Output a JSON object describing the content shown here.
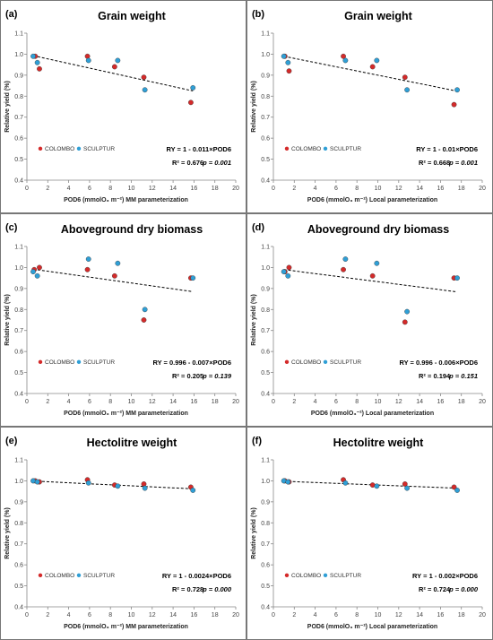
{
  "styles": {
    "colombo_color": "#d42a2a",
    "sculptur_color": "#2f9fd6",
    "trend_color": "#000000",
    "border_color": "#777777"
  },
  "chart_data": [
    {
      "panel": "(a)",
      "type": "scatter",
      "title": "Grain weight",
      "xlabel": "POD6 (mmolO₃ m⁻²) MM parameterization",
      "ylabel": "Relative yield (%)",
      "xlim": [
        0,
        20
      ],
      "ylim": [
        0.4,
        1.1
      ],
      "xticks": [
        "0",
        "2",
        "4",
        "6",
        "8",
        "10",
        "12",
        "14",
        "16",
        "18",
        "20"
      ],
      "yticks": [
        "0.4",
        "0.5",
        "0.6",
        "0.7",
        "0.8",
        "0.9",
        "1.0",
        "1.1"
      ],
      "legend": [
        "COLOMBO",
        "SCULPTUR"
      ],
      "series": [
        {
          "name": "COLOMBO",
          "x": [
            0.8,
            1.2,
            5.8,
            8.4,
            11.2,
            15.7
          ],
          "y": [
            0.99,
            0.93,
            0.99,
            0.94,
            0.89,
            0.77
          ]
        },
        {
          "name": "SCULPTUR",
          "x": [
            0.6,
            1.0,
            5.9,
            8.7,
            11.3,
            15.9
          ],
          "y": [
            0.99,
            0.96,
            0.97,
            0.97,
            0.83,
            0.84
          ]
        }
      ],
      "trend": {
        "x": [
          0.6,
          15.9
        ],
        "y": [
          0.993,
          0.825
        ]
      },
      "equation": "RY = 1 - 0.011×POD6",
      "r2": "R² = 0.676",
      "p": "p = 0.001"
    },
    {
      "panel": "(b)",
      "type": "scatter",
      "title": "Grain weight",
      "xlabel": "POD6 (mmolO₃ m⁻²) Local parameterization",
      "ylabel": "Relative yield (%)",
      "xlim": [
        0,
        20
      ],
      "ylim": [
        0.4,
        1.1
      ],
      "xticks": [
        "0",
        "2",
        "4",
        "6",
        "8",
        "10",
        "12",
        "14",
        "16",
        "18",
        "20"
      ],
      "yticks": [
        "0.4",
        "0.5",
        "0.6",
        "0.7",
        "0.8",
        "0.9",
        "1.0",
        "1.1"
      ],
      "legend": [
        "COLOMBO",
        "SCULPTUR"
      ],
      "series": [
        {
          "name": "COLOMBO",
          "x": [
            1.1,
            1.5,
            6.7,
            9.5,
            12.6,
            17.3
          ],
          "y": [
            0.99,
            0.92,
            0.99,
            0.94,
            0.89,
            0.76
          ]
        },
        {
          "name": "SCULPTUR",
          "x": [
            1.0,
            1.4,
            6.9,
            9.9,
            12.8,
            17.6
          ],
          "y": [
            0.99,
            0.96,
            0.97,
            0.97,
            0.83,
            0.83
          ]
        }
      ],
      "trend": {
        "x": [
          1.0,
          17.6
        ],
        "y": [
          0.99,
          0.824
        ]
      },
      "equation": "RY = 1 - 0.01×POD6",
      "r2": "R² = 0.668",
      "p": "p = 0.001"
    },
    {
      "panel": "(c)",
      "type": "scatter",
      "title": "Aboveground dry biomass",
      "xlabel": "POD6 (mmolO₃ m⁻²) MM parameterization",
      "ylabel": "Relative yield (%)",
      "xlim": [
        0,
        20
      ],
      "ylim": [
        0.4,
        1.1
      ],
      "xticks": [
        "0",
        "2",
        "4",
        "6",
        "8",
        "10",
        "12",
        "14",
        "16",
        "18",
        "20"
      ],
      "yticks": [
        "0.4",
        "0.5",
        "0.6",
        "0.7",
        "0.8",
        "0.9",
        "1.0",
        "1.1"
      ],
      "legend": [
        "COLOMBO",
        "SCULPTUR"
      ],
      "series": [
        {
          "name": "COLOMBO",
          "x": [
            0.7,
            1.2,
            5.8,
            8.4,
            11.2,
            15.7
          ],
          "y": [
            0.99,
            1.0,
            0.99,
            0.96,
            0.75,
            0.95
          ]
        },
        {
          "name": "SCULPTUR",
          "x": [
            0.6,
            1.0,
            5.9,
            8.7,
            11.3,
            15.9
          ],
          "y": [
            0.98,
            0.96,
            1.04,
            1.02,
            0.8,
            0.95
          ]
        }
      ],
      "trend": {
        "x": [
          0.6,
          15.9
        ],
        "y": [
          0.992,
          0.885
        ]
      },
      "equation": "RY = 0.996 - 0.007×POD6",
      "r2": "R² = 0.205",
      "p": "p = 0.139"
    },
    {
      "panel": "(d)",
      "type": "scatter",
      "title": "Aboveground dry biomass",
      "xlabel": "POD6 (mmolO₃⁻²) Local parameterization",
      "ylabel": "Relative yield (%)",
      "xlim": [
        0,
        20
      ],
      "ylim": [
        0.4,
        1.1
      ],
      "xticks": [
        "0",
        "2",
        "4",
        "6",
        "8",
        "10",
        "12",
        "14",
        "16",
        "18",
        "20"
      ],
      "yticks": [
        "0.4",
        "0.5",
        "0.6",
        "0.7",
        "0.8",
        "0.9",
        "1.0",
        "1.1"
      ],
      "legend": [
        "COLOMBO",
        "SCULPTUR"
      ],
      "series": [
        {
          "name": "COLOMBO",
          "x": [
            1.1,
            1.5,
            6.7,
            9.5,
            12.6,
            17.3
          ],
          "y": [
            0.98,
            1.0,
            0.99,
            0.96,
            0.74,
            0.95
          ]
        },
        {
          "name": "SCULPTUR",
          "x": [
            1.0,
            1.4,
            6.9,
            9.9,
            12.8,
            17.6
          ],
          "y": [
            0.98,
            0.96,
            1.04,
            1.02,
            0.79,
            0.95
          ]
        }
      ],
      "trend": {
        "x": [
          1.0,
          17.6
        ],
        "y": [
          0.99,
          0.884
        ]
      },
      "equation": "RY = 0.996 - 0.006×POD6",
      "r2": "R² = 0.194",
      "p": "p = 0.151"
    },
    {
      "panel": "(e)",
      "type": "scatter",
      "title": "Hectolitre weight",
      "xlabel": "POD6 (mmolO₃ m⁻²) MM parameterization",
      "ylabel": "Relative yield (%)",
      "xlim": [
        0,
        20
      ],
      "ylim": [
        0.4,
        1.1
      ],
      "xticks": [
        "0",
        "2",
        "4",
        "6",
        "8",
        "10",
        "12",
        "14",
        "16",
        "18",
        "20"
      ],
      "yticks": [
        "0.4",
        "0.5",
        "0.6",
        "0.7",
        "0.8",
        "0.9",
        "1.0",
        "1.1"
      ],
      "legend": [
        "COLOMBO",
        "SCULPTUR"
      ],
      "series": [
        {
          "name": "COLOMBO",
          "x": [
            0.8,
            1.2,
            5.8,
            8.4,
            11.2,
            15.7
          ],
          "y": [
            1.0,
            0.995,
            1.005,
            0.98,
            0.985,
            0.97
          ]
        },
        {
          "name": "SCULPTUR",
          "x": [
            0.6,
            1.0,
            5.9,
            8.7,
            11.3,
            15.9
          ],
          "y": [
            1.0,
            0.995,
            0.99,
            0.975,
            0.965,
            0.955
          ]
        }
      ],
      "trend": {
        "x": [
          0.6,
          15.9
        ],
        "y": [
          0.999,
          0.962
        ]
      },
      "equation": "RY = 1 - 0.0024×POD6",
      "r2": "R² = 0.728",
      "p": "p = 0.000"
    },
    {
      "panel": "(f)",
      "type": "scatter",
      "title": "Hectolitre weight",
      "xlabel": "POD6 (mmolO₃ m⁻²) Local parameterization",
      "ylabel": "Relative yield (%)",
      "xlim": [
        0,
        20
      ],
      "ylim": [
        0.4,
        1.1
      ],
      "xticks": [
        "0",
        "2",
        "4",
        "6",
        "8",
        "10",
        "12",
        "14",
        "16",
        "18",
        "20"
      ],
      "yticks": [
        "0.4",
        "0.5",
        "0.6",
        "0.7",
        "0.8",
        "0.9",
        "1.0",
        "1.1"
      ],
      "legend": [
        "COLOMBO",
        "SCULPTUR"
      ],
      "series": [
        {
          "name": "COLOMBO",
          "x": [
            1.1,
            1.5,
            6.7,
            9.5,
            12.6,
            17.3
          ],
          "y": [
            1.0,
            0.995,
            1.005,
            0.98,
            0.985,
            0.97
          ]
        },
        {
          "name": "SCULPTUR",
          "x": [
            1.0,
            1.4,
            6.9,
            9.9,
            12.8,
            17.6
          ],
          "y": [
            1.0,
            0.995,
            0.99,
            0.975,
            0.965,
            0.955
          ]
        }
      ],
      "trend": {
        "x": [
          1.0,
          17.6
        ],
        "y": [
          0.998,
          0.965
        ]
      },
      "equation": "RY = 1 - 0.002×POD6",
      "r2": "R² = 0.724",
      "p": "p = 0.000"
    }
  ]
}
